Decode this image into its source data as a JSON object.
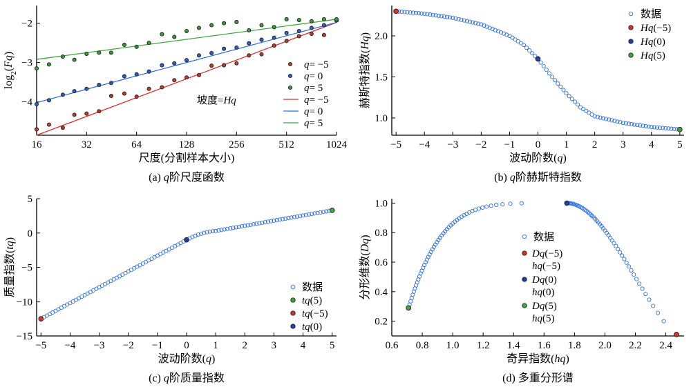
{
  "chart_data": [
    {
      "id": "a",
      "type": "scatter",
      "caption_prefix": "(a) ",
      "caption_q": "q",
      "caption_rest": "阶尺度函数",
      "xlabel": "尺度(分割样本大小)",
      "ylabel_pre": "log",
      "ylabel_sub": "2",
      "ylabel_post": "(Fq)",
      "xscale": "log2",
      "xlim": [
        16,
        1024
      ],
      "ylim": [
        -4.85,
        -1.55
      ],
      "xticks": [
        16,
        32,
        64,
        128,
        256,
        512,
        1024
      ],
      "xtick_labels": [
        "16",
        "32",
        "64",
        "128",
        "256",
        "512",
        "1024"
      ],
      "yticks": [
        -4,
        -3,
        -2
      ],
      "ytick_labels": [
        "−4",
        "−3",
        "−2"
      ],
      "annotation": "坡度=Hq",
      "legend_position": "center-right",
      "series": [
        {
          "name": "q= −5",
          "kind": "points",
          "color": "#c0392b",
          "x": [
            16,
            19,
            23,
            27,
            32,
            38,
            45,
            54,
            64,
            76,
            91,
            108,
            128,
            152,
            181,
            215,
            256,
            304,
            362,
            431,
            512,
            609,
            724,
            861,
            1024
          ],
          "y": [
            -4.7,
            -4.58,
            -4.66,
            -4.33,
            -4.3,
            -4.24,
            -3.85,
            -3.79,
            -3.87,
            -3.67,
            -3.63,
            -3.45,
            -3.38,
            -3.32,
            -3.08,
            -3.07,
            -3.02,
            -2.82,
            -2.79,
            -2.57,
            -2.45,
            -2.33,
            -2.27,
            -2.3,
            -1.93
          ]
        },
        {
          "name": "q= 0",
          "kind": "points",
          "color": "#2c5fbf",
          "x": [
            16,
            19,
            23,
            27,
            32,
            38,
            45,
            54,
            64,
            76,
            91,
            108,
            128,
            152,
            181,
            215,
            256,
            304,
            362,
            431,
            512,
            609,
            724,
            861,
            1024
          ],
          "y": [
            -4.06,
            -3.96,
            -3.82,
            -3.73,
            -3.67,
            -3.57,
            -3.52,
            -3.35,
            -3.3,
            -3.23,
            -3.07,
            -3.02,
            -2.94,
            -2.82,
            -2.76,
            -2.65,
            -2.62,
            -2.51,
            -2.42,
            -2.37,
            -2.25,
            -2.2,
            -2.12,
            -2.05,
            -1.93
          ]
        },
        {
          "name": "q= 5",
          "kind": "points",
          "color": "#3a9a3a",
          "x": [
            16,
            19,
            23,
            27,
            32,
            38,
            45,
            54,
            64,
            76,
            91,
            108,
            128,
            152,
            181,
            215,
            256,
            304,
            362,
            431,
            512,
            609,
            724,
            861,
            1024
          ],
          "y": [
            -3.15,
            -3.05,
            -2.85,
            -2.93,
            -2.78,
            -2.75,
            -2.75,
            -2.55,
            -2.6,
            -2.5,
            -2.28,
            -2.35,
            -2.2,
            -2.12,
            -2.05,
            -2.0,
            -1.97,
            -2.18,
            -2.05,
            -2.1,
            -1.9,
            -1.92,
            -1.95,
            -1.9,
            -1.9
          ]
        },
        {
          "name": "q= −5",
          "kind": "line",
          "color": "#e03030",
          "x": [
            16,
            1024
          ],
          "y": [
            -4.85,
            -1.98
          ]
        },
        {
          "name": "q= 0",
          "kind": "line",
          "color": "#2e6fe0",
          "x": [
            16,
            1024
          ],
          "y": [
            -4.02,
            -1.98
          ]
        },
        {
          "name": "q= 5",
          "kind": "line",
          "color": "#3aa83a",
          "x": [
            16,
            1024
          ],
          "y": [
            -2.92,
            -1.9
          ]
        }
      ]
    },
    {
      "id": "b",
      "type": "scatter",
      "caption_prefix": "(b) ",
      "caption_q": "q",
      "caption_rest": "阶赫斯特指数",
      "xlabel": "波动阶数(q)",
      "ylabel": "赫斯特指数(Hq)",
      "xlim": [
        -5.15,
        5.15
      ],
      "ylim": [
        0.79,
        2.37
      ],
      "xticks": [
        -5,
        -4,
        -3,
        -2,
        -1,
        0,
        1,
        2,
        3,
        4,
        5
      ],
      "xtick_labels": [
        "−5",
        "−4",
        "−3",
        "−2",
        "−1",
        "0",
        "1",
        "2",
        "3",
        "4",
        "5"
      ],
      "yticks": [
        1.0,
        1.5,
        2.0
      ],
      "ytick_labels": [
        "1.0",
        "1.5",
        "2.0"
      ],
      "legend_position": "top-right",
      "curve": {
        "name": "数据",
        "color": "#2e6fe0",
        "q": [
          -5,
          -4,
          -3,
          -2,
          -1,
          -0.5,
          0,
          0.5,
          1,
          1.5,
          2,
          3,
          4,
          5
        ],
        "h": [
          2.3,
          2.27,
          2.22,
          2.14,
          2.0,
          1.89,
          1.72,
          1.5,
          1.3,
          1.13,
          1.02,
          0.94,
          0.89,
          0.86
        ],
        "n": 101
      },
      "markers": [
        {
          "name": "Hq(−5)",
          "x": -5,
          "y": 2.3,
          "color": "#d9322a"
        },
        {
          "name": "Hq(0)",
          "x": 0,
          "y": 1.72,
          "color": "#1f3fa8"
        },
        {
          "name": "Hq(5)",
          "x": 5,
          "y": 0.86,
          "color": "#3aa83a"
        }
      ]
    },
    {
      "id": "c",
      "type": "scatter",
      "caption_prefix": "(c) ",
      "caption_q": "q",
      "caption_rest": "阶质量指数",
      "xlabel": "波动阶数(q)",
      "ylabel": "质量指数(tq)",
      "xlim": [
        -5.15,
        5.15
      ],
      "ylim": [
        -15,
        5
      ],
      "xticks": [
        -5,
        -4,
        -3,
        -2,
        -1,
        0,
        1,
        2,
        3,
        4,
        5
      ],
      "xtick_labels": [
        "−5",
        "−4",
        "−3",
        "−2",
        "−1",
        "0",
        "1",
        "2",
        "3",
        "4",
        "5"
      ],
      "yticks": [
        -15,
        -10,
        -5,
        0,
        5
      ],
      "ytick_labels": [
        "−15",
        "−10",
        "−5",
        "0",
        "5"
      ],
      "legend_position": "bottom-right",
      "curve": {
        "name": "数据",
        "color": "#2e6fe0",
        "q_start": -5,
        "q_end": 5,
        "n": 101
      },
      "markers": [
        {
          "name": "tq(5)",
          "x": 5,
          "y": 3.3,
          "color": "#3aa83a"
        },
        {
          "name": "tq(−5)",
          "x": -5,
          "y": -12.5,
          "color": "#d9322a"
        },
        {
          "name": "tq(0)",
          "x": 0,
          "y": -1,
          "color": "#1f3fa8"
        }
      ]
    },
    {
      "id": "d",
      "type": "scatter",
      "caption_prefix": "(d) ",
      "caption_q": "",
      "caption_rest": "多重分形谱",
      "xlabel": "奇异指数(hq)",
      "ylabel": "分形维数(Dq)",
      "xlim": [
        0.6,
        2.52
      ],
      "ylim": [
        0.1,
        1.03
      ],
      "xticks": [
        0.6,
        0.8,
        1.0,
        1.2,
        1.4,
        1.6,
        1.8,
        2.0,
        2.2,
        2.4
      ],
      "xtick_labels": [
        "0.6",
        "0.8",
        "1.0",
        "1.2",
        "1.4",
        "1.6",
        "1.8",
        "2.0",
        "2.2",
        "2.4"
      ],
      "yticks": [
        0.2,
        0.4,
        0.6,
        0.8,
        1.0
      ],
      "ytick_labels": [
        "0.2",
        "0.4",
        "0.6",
        "0.8",
        "1.0"
      ],
      "legend_position": "center",
      "curve": {
        "name": "数据",
        "color": "#2e6fe0"
      },
      "markers": [
        {
          "name": "Dq(−5)",
          "name2": "hq(−5)",
          "x": 2.47,
          "y": 0.11,
          "color": "#d9322a"
        },
        {
          "name": "Dq(0)",
          "name2": "hq(0)",
          "x": 1.75,
          "y": 1.0,
          "color": "#1f3fa8"
        },
        {
          "name": "Dq(5)",
          "name2": "hq(5)",
          "x": 0.71,
          "y": 0.29,
          "color": "#3aa83a"
        }
      ]
    }
  ]
}
